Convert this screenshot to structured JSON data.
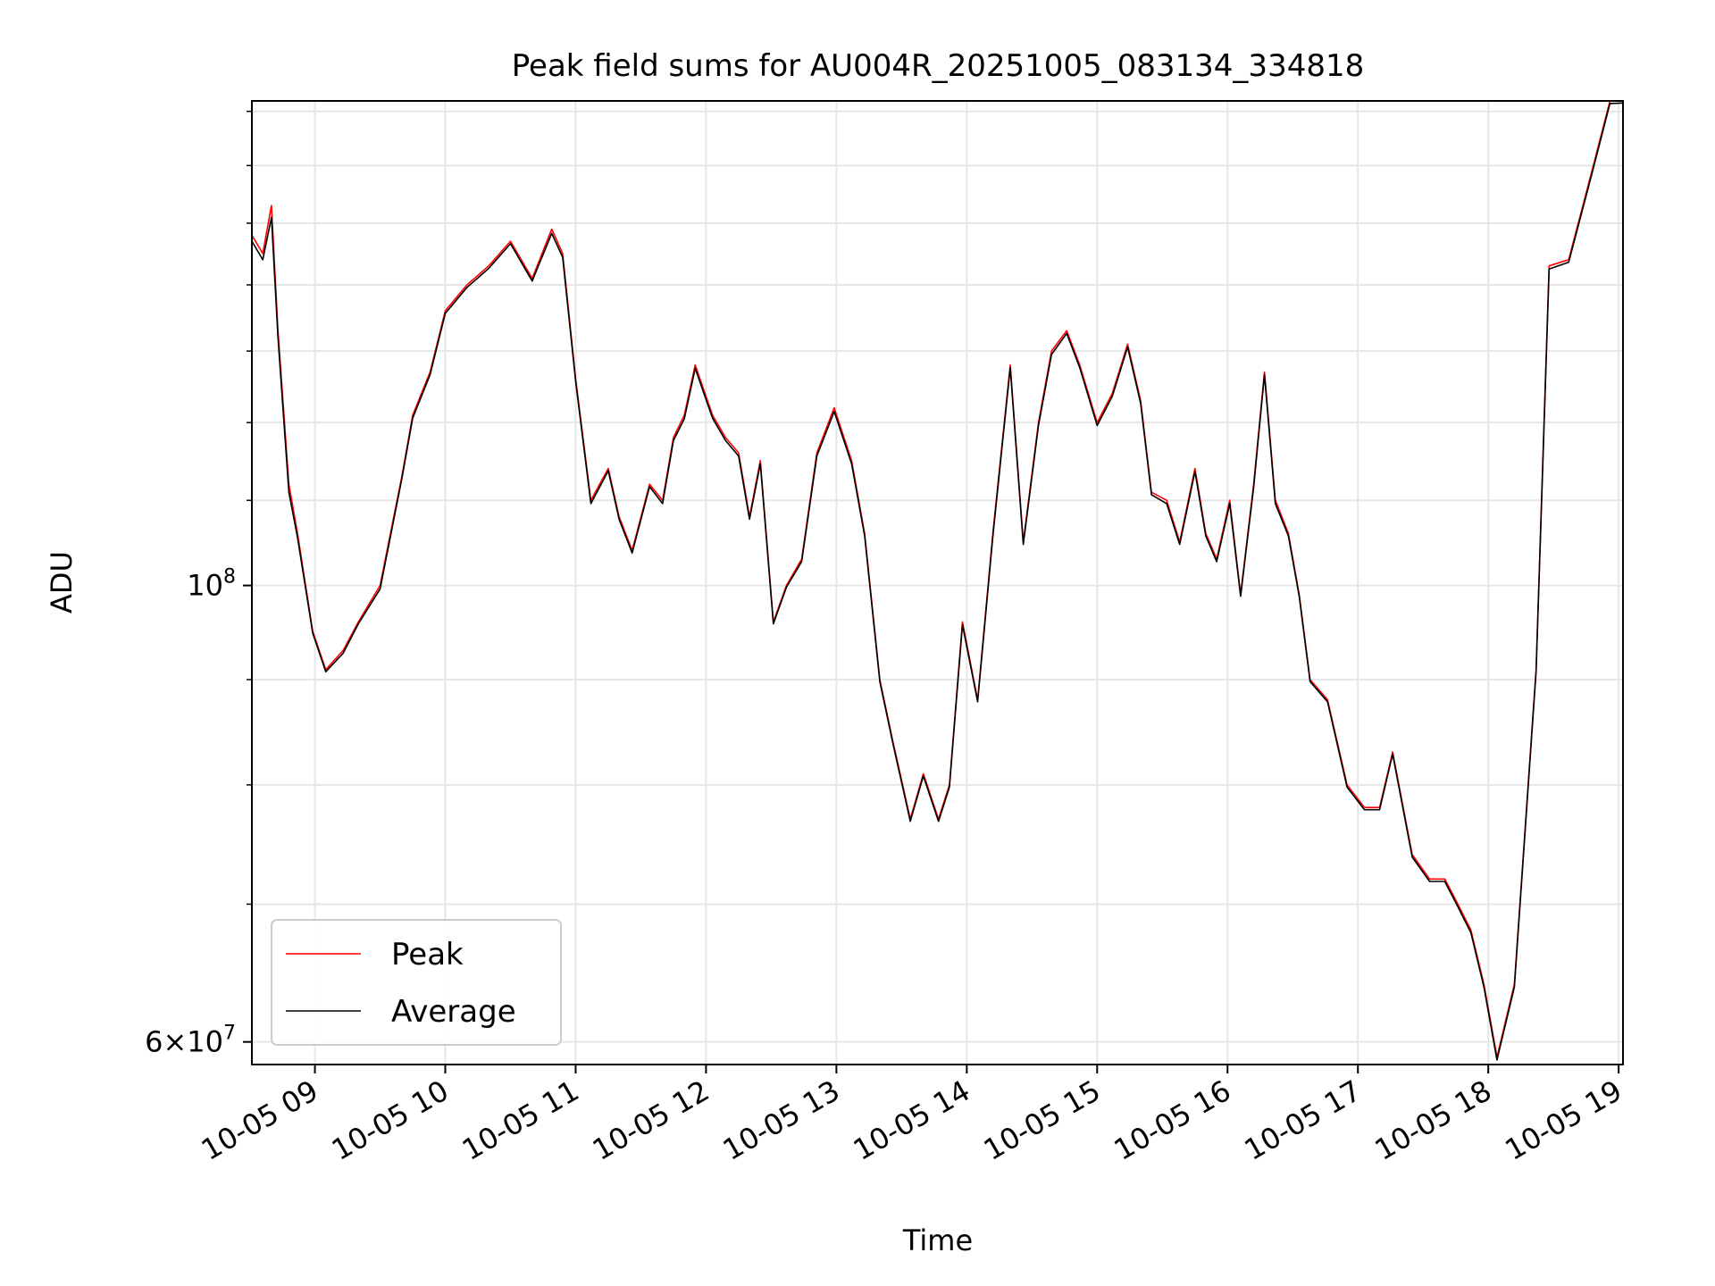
{
  "chart_data": {
    "type": "line",
    "title": "Peak field sums for AU004R_20251005_083134_334818",
    "xlabel": "Time",
    "ylabel": "ADU",
    "yscale": "log",
    "grid": true,
    "legend_position": "lower-left",
    "xlim": [
      "2025-10-05 08:31",
      "2025-10-05 19:02"
    ],
    "ylim": [
      58500000,
      172000000
    ],
    "x_ticks": [
      "10-05 09",
      "10-05 10",
      "10-05 11",
      "10-05 12",
      "10-05 13",
      "10-05 14",
      "10-05 15",
      "10-05 16",
      "10-05 17",
      "10-05 18",
      "10-05 19"
    ],
    "y_ticks": [
      {
        "value": 100000000,
        "base": "10",
        "exp": "8",
        "mult": ""
      },
      {
        "value": 60000000,
        "base": "10",
        "exp": "7",
        "mult": "6×"
      }
    ],
    "x": [
      "2025-10-05 08:31",
      "2025-10-05 08:36",
      "2025-10-05 08:40",
      "2025-10-05 08:43",
      "2025-10-05 08:48",
      "2025-10-05 08:52",
      "2025-10-05 08:59",
      "2025-10-05 09:05",
      "2025-10-05 09:13",
      "2025-10-05 09:20",
      "2025-10-05 09:30",
      "2025-10-05 09:40",
      "2025-10-05 09:45",
      "2025-10-05 09:53",
      "2025-10-05 10:00",
      "2025-10-05 10:10",
      "2025-10-05 10:20",
      "2025-10-05 10:30",
      "2025-10-05 10:40",
      "2025-10-05 10:49",
      "2025-10-05 10:54",
      "2025-10-05 11:00",
      "2025-10-05 11:07",
      "2025-10-05 11:15",
      "2025-10-05 11:20",
      "2025-10-05 11:26",
      "2025-10-05 11:34",
      "2025-10-05 11:40",
      "2025-10-05 11:45",
      "2025-10-05 11:50",
      "2025-10-05 11:55",
      "2025-10-05 12:03",
      "2025-10-05 12:09",
      "2025-10-05 12:15",
      "2025-10-05 12:20",
      "2025-10-05 12:25",
      "2025-10-05 12:31",
      "2025-10-05 12:37",
      "2025-10-05 12:44",
      "2025-10-05 12:51",
      "2025-10-05 12:59",
      "2025-10-05 13:07",
      "2025-10-05 13:13",
      "2025-10-05 13:20",
      "2025-10-05 13:26",
      "2025-10-05 13:34",
      "2025-10-05 13:40",
      "2025-10-05 13:47",
      "2025-10-05 13:52",
      "2025-10-05 13:58",
      "2025-10-05 14:05",
      "2025-10-05 14:12",
      "2025-10-05 14:20",
      "2025-10-05 14:26",
      "2025-10-05 14:33",
      "2025-10-05 14:39",
      "2025-10-05 14:46",
      "2025-10-05 14:52",
      "2025-10-05 15:00",
      "2025-10-05 15:07",
      "2025-10-05 15:14",
      "2025-10-05 15:20",
      "2025-10-05 15:25",
      "2025-10-05 15:32",
      "2025-10-05 15:38",
      "2025-10-05 15:45",
      "2025-10-05 15:50",
      "2025-10-05 15:55",
      "2025-10-05 16:01",
      "2025-10-05 16:06",
      "2025-10-05 16:12",
      "2025-10-05 16:17",
      "2025-10-05 16:22",
      "2025-10-05 16:28",
      "2025-10-05 16:33",
      "2025-10-05 16:38",
      "2025-10-05 16:46",
      "2025-10-05 16:55",
      "2025-10-05 17:03",
      "2025-10-05 17:10",
      "2025-10-05 17:16",
      "2025-10-05 17:25",
      "2025-10-05 17:33",
      "2025-10-05 17:40",
      "2025-10-05 17:46",
      "2025-10-05 17:52",
      "2025-10-05 17:58",
      "2025-10-05 18:04",
      "2025-10-05 18:12",
      "2025-10-05 18:22",
      "2025-10-05 18:28",
      "2025-10-05 18:37",
      "2025-10-05 18:47",
      "2025-10-05 18:56",
      "2025-10-05 19:02"
    ],
    "series": [
      {
        "name": "Peak",
        "color": "#ff0000",
        "values": [
          148000000,
          145000000,
          153000000,
          133000000,
          112000000,
          106000000,
          95000000,
          91000000,
          93000000,
          96000000,
          100000000,
          113000000,
          121000000,
          127000000,
          136000000,
          140000000,
          143000000,
          147000000,
          141000000,
          149000000,
          145000000,
          126000000,
          110000000,
          114000000,
          108000000,
          104000000,
          112000000,
          110000000,
          118000000,
          121000000,
          128000000,
          121000000,
          118000000,
          116000000,
          108000000,
          115000000,
          96000000,
          100000000,
          103000000,
          116000000,
          122000000,
          115000000,
          106000000,
          90000000,
          84000000,
          77000000,
          81000000,
          77000000,
          80000000,
          96000000,
          88000000,
          106000000,
          128000000,
          105000000,
          120000000,
          130000000,
          133000000,
          128000000,
          120000000,
          124000000,
          131000000,
          123000000,
          111000000,
          110000000,
          105000000,
          114000000,
          106000000,
          103000000,
          110000000,
          99000000,
          112000000,
          127000000,
          110000000,
          106000000,
          99000000,
          90000000,
          88000000,
          80000000,
          78000000,
          78000000,
          83000000,
          74000000,
          72000000,
          72000000,
          70000000,
          68000000,
          64000000,
          59000000,
          64000000,
          91000000,
          143000000,
          144000000,
          158000000,
          172000000,
          172000000
        ]
      },
      {
        "name": "Average",
        "color": "#000000",
        "values": [
          147000000,
          144000000,
          151000000,
          132000000,
          111000000,
          105500000,
          94800000,
          90800000,
          92700000,
          95800000,
          99600000,
          112700000,
          120600000,
          126600000,
          135600000,
          139600000,
          142600000,
          146600000,
          140600000,
          148300000,
          144400000,
          125600000,
          109600000,
          113700000,
          107700000,
          103700000,
          111700000,
          109600000,
          117600000,
          120500000,
          127500000,
          120600000,
          117600000,
          115600000,
          107700000,
          114600000,
          95800000,
          99800000,
          102700000,
          115600000,
          121500000,
          114600000,
          105700000,
          89800000,
          83800000,
          76800000,
          80800000,
          76800000,
          79800000,
          95700000,
          87800000,
          105600000,
          127600000,
          104700000,
          119600000,
          129500000,
          132600000,
          127600000,
          119600000,
          123600000,
          130600000,
          122600000,
          110700000,
          109600000,
          104700000,
          113600000,
          105700000,
          102700000,
          109600000,
          98800000,
          111600000,
          126600000,
          109600000,
          105700000,
          98800000,
          89800000,
          87800000,
          79800000,
          77800000,
          77800000,
          82800000,
          73800000,
          71800000,
          71800000,
          69800000,
          67800000,
          63800000,
          58800000,
          63800000,
          90800000,
          142500000,
          143600000,
          157500000,
          171500000,
          171600000
        ]
      }
    ]
  }
}
